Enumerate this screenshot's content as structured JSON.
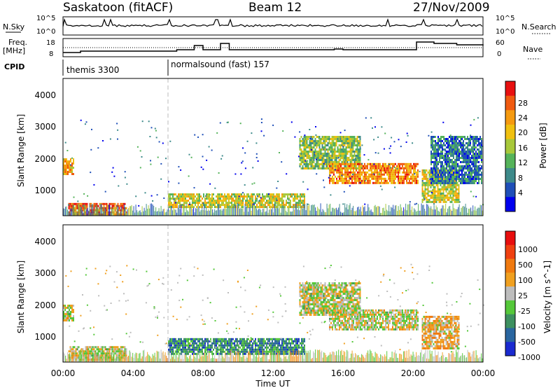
{
  "header": {
    "station": "Saskatoon (fitACF)",
    "beam": "Beam 12",
    "date": "27/Nov/2009"
  },
  "sky_panel": {
    "left_label": "N.Sky",
    "right_label": "N.Search",
    "left_ticks": [
      "10^5",
      "10^0"
    ],
    "right_ticks": [
      "10^5",
      "10^0"
    ]
  },
  "freq_panel": {
    "left_label_1": "Freq.",
    "left_label_2": "[MHz]",
    "right_label": "Nave",
    "left_ticks": [
      "18",
      "8"
    ],
    "right_ticks": [
      "60",
      "0"
    ]
  },
  "cpid": {
    "label": "CPID",
    "segments": [
      {
        "name": "themis 3300",
        "start_hour": 0
      },
      {
        "name": "normalsound (fast) 157",
        "start_hour": 6
      }
    ]
  },
  "colors": {
    "power_scale": [
      "#0000ee",
      "#1f4fb8",
      "#3d8a8a",
      "#55b35a",
      "#a8c83a",
      "#f0c010",
      "#f59a10",
      "#f05a10",
      "#e81010"
    ],
    "velocity_scale": [
      "#1a2ad0",
      "#2a66a0",
      "#3d9060",
      "#55c83a",
      "#bdbdbd",
      "#f0a020",
      "#f07a10",
      "#f04010",
      "#e80e0e"
    ]
  },
  "chart_data": [
    {
      "type": "heatmap",
      "name": "power",
      "ylabel": "Slant Range [km]",
      "yticks": [
        "4000",
        "3000",
        "2000",
        "1000"
      ],
      "ylim": [
        200,
        4500
      ],
      "xlim_hours": [
        0,
        24
      ],
      "colorbar": {
        "label": "Power [dB]",
        "ticks": [
          "28",
          "24",
          "20",
          "16",
          "12",
          "8",
          "4"
        ],
        "range": [
          0,
          32
        ]
      },
      "regions": [
        {
          "t0": 0.3,
          "t1": 3.6,
          "r0": 250,
          "r1": 600,
          "level": 0.85
        },
        {
          "t0": 6.0,
          "t1": 13.8,
          "r0": 450,
          "r1": 900,
          "level": 0.55
        },
        {
          "t0": 13.5,
          "t1": 17.0,
          "r0": 1650,
          "r1": 2700,
          "level": 0.45
        },
        {
          "t0": 15.2,
          "t1": 20.3,
          "r0": 1200,
          "r1": 1850,
          "level": 0.75
        },
        {
          "t0": 20.5,
          "t1": 22.6,
          "r0": 650,
          "r1": 1650,
          "level": 0.55
        },
        {
          "t0": 0.0,
          "t1": 0.6,
          "r0": 1500,
          "r1": 2000,
          "level": 0.7
        },
        {
          "t0": 21.0,
          "t1": 23.9,
          "r0": 1200,
          "r1": 2700,
          "level": 0.25
        }
      ]
    },
    {
      "type": "heatmap",
      "name": "velocity",
      "ylabel": "Slant Range [km]",
      "yticks": [
        "4000",
        "3000",
        "2000",
        "1000"
      ],
      "ylim": [
        200,
        4500
      ],
      "xlim_hours": [
        0,
        24
      ],
      "xticks": [
        "00:00",
        "04:00",
        "08:00",
        "12:00",
        "16:00",
        "20:00",
        "00:00"
      ],
      "xlabel": "Time UT",
      "colorbar": {
        "label": "Velocity [m s^-1]",
        "ticks": [
          "1000",
          "500",
          "100",
          "25",
          "-25",
          "-100",
          "-500",
          "-1000"
        ],
        "range": [
          -1000,
          1000
        ]
      },
      "regions": [
        {
          "t0": 0.3,
          "t1": 3.6,
          "r0": 250,
          "r1": 700,
          "level": 0.5
        },
        {
          "t0": 6.0,
          "t1": 13.8,
          "r0": 450,
          "r1": 950,
          "level": 0.25
        },
        {
          "t0": 13.5,
          "t1": 17.0,
          "r0": 1650,
          "r1": 2700,
          "level": 0.5
        },
        {
          "t0": 15.2,
          "t1": 20.3,
          "r0": 1200,
          "r1": 1850,
          "level": 0.5
        },
        {
          "t0": 20.5,
          "t1": 22.6,
          "r0": 650,
          "r1": 1650,
          "level": 0.6
        },
        {
          "t0": 0.0,
          "t1": 0.6,
          "r0": 1500,
          "r1": 2000,
          "level": 0.5
        }
      ]
    }
  ]
}
